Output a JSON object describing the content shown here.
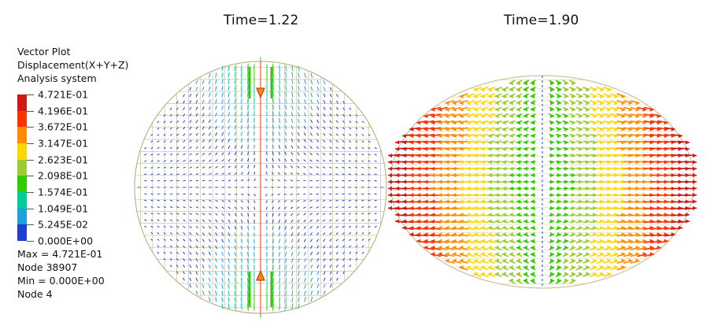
{
  "panels": {
    "left_title": "Time=1.22",
    "right_title": "Time=1.90"
  },
  "legend": {
    "line1": "Vector Plot",
    "line2": "Displacement(X+Y+Z)",
    "line3": "Analysis system",
    "levels": [
      "4.721E-01",
      "4.196E-01",
      "3.672E-01",
      "3.147E-01",
      "2.623E-01",
      "2.098E-01",
      "1.574E-01",
      "1.049E-01",
      "5.245E-02",
      "0.000E+00"
    ],
    "colors": [
      "#cc1a1a",
      "#ff3300",
      "#ff8c00",
      "#ffd700",
      "#9acd32",
      "#33cc00",
      "#00cc99",
      "#1ea0dc",
      "#1f3fd0"
    ],
    "max": "Max = 4.721E-01",
    "max_node": "Node 38907",
    "min": "Min = 0.000E+00",
    "min_node": "Node 4"
  }
}
